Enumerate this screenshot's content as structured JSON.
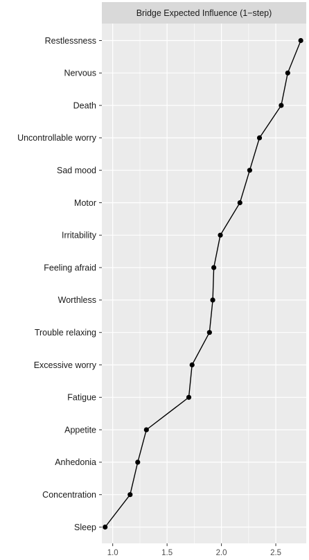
{
  "chart_data": {
    "type": "line",
    "title": "Bridge Expected Influence (1−step)",
    "xlabel": "",
    "ylabel": "",
    "xlim": [
      0.9,
      2.78
    ],
    "xticks": [
      1.0,
      1.5,
      2.0,
      2.5
    ],
    "xtick_labels": [
      "1.0",
      "1.5",
      "2.0",
      "2.5"
    ],
    "grid": true,
    "categories": [
      "Restlessness",
      "Nervous",
      "Death",
      "Uncontrollable worry",
      "Sad mood",
      "Motor",
      "Irritability",
      "Feeling afraid",
      "Worthless",
      "Trouble relaxing",
      "Excessive worry",
      "Fatigue",
      "Appetite",
      "Anhedonia",
      "Concentration",
      "Sleep"
    ],
    "values": [
      2.73,
      2.61,
      2.55,
      2.35,
      2.26,
      2.17,
      1.99,
      1.93,
      1.92,
      1.89,
      1.73,
      1.7,
      1.31,
      1.23,
      1.16,
      0.93
    ]
  }
}
